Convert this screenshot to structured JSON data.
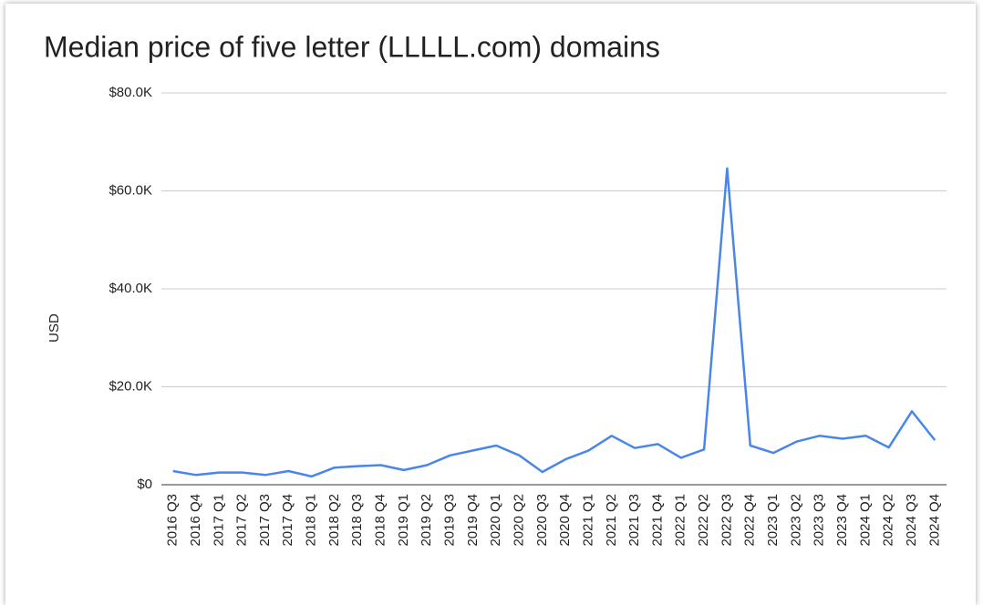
{
  "chart_data": {
    "type": "line",
    "title": "Median price of five letter (LLLLL.com) domains",
    "y_label": "USD",
    "categories": [
      "2016 Q3",
      "2016 Q4",
      "2017 Q1",
      "2017 Q2",
      "2017 Q3",
      "2017 Q4",
      "2018 Q1",
      "2018 Q2",
      "2018 Q3",
      "2018 Q4",
      "2019 Q1",
      "2019 Q2",
      "2019 Q3",
      "2019 Q4",
      "2020 Q1",
      "2020 Q2",
      "2020 Q3",
      "2020 Q4",
      "2021 Q1",
      "2021 Q2",
      "2021 Q3",
      "2021 Q4",
      "2022 Q1",
      "2022 Q2",
      "2022 Q3",
      "2022 Q4",
      "2023 Q1",
      "2023 Q2",
      "2023 Q3",
      "2023 Q4",
      "2024 Q1",
      "2024 Q2",
      "2024 Q3",
      "2024 Q4"
    ],
    "values": [
      2800,
      2000,
      2500,
      2500,
      2000,
      2800,
      1700,
      3500,
      3800,
      4000,
      3000,
      4000,
      6000,
      7000,
      8000,
      6000,
      2600,
      5200,
      7000,
      10000,
      7500,
      8300,
      5500,
      7200,
      64600,
      8000,
      6500,
      8800,
      10000,
      9400,
      10000,
      7600,
      15000,
      9100
    ],
    "color": "#4a86e8",
    "ylim": [
      0,
      80000
    ],
    "yticks": [
      {
        "value": 0,
        "label": "$0"
      },
      {
        "value": 20000,
        "label": "$20.0K"
      },
      {
        "value": 40000,
        "label": "$40.0K"
      },
      {
        "value": 60000,
        "label": "$60.0K"
      },
      {
        "value": 80000,
        "label": "$80.0K"
      }
    ],
    "grid": true
  }
}
